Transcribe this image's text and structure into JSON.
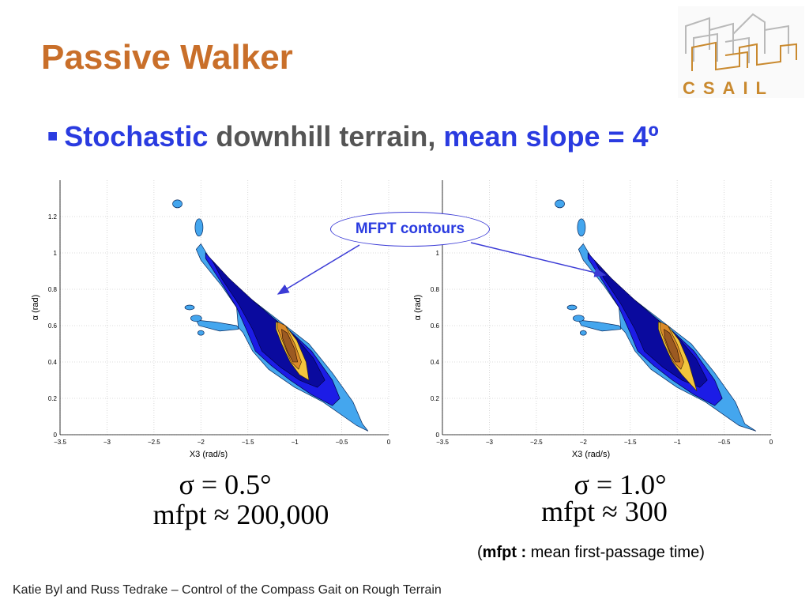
{
  "slide": {
    "title": "Passive Walker",
    "bullet": {
      "part1": "Stochastic",
      "part2": "downhill terrain,",
      "part3": "mean slope = 4º"
    },
    "logo_text": "CSAIL",
    "callout": "MFPT contours",
    "left_caption": {
      "line1": "σ = 0.5°",
      "line2": "mfpt ≈ 200,000"
    },
    "right_caption": {
      "line1": "σ = 1.0°",
      "line2": "mfpt ≈ 300"
    },
    "note": {
      "open": "(",
      "bold": "mfpt :",
      "rest": " mean first-passage time)"
    },
    "footer": "Katie Byl and Russ Tedrake – Control of the Compass Gait on Rough Terrain"
  },
  "colors": {
    "title": "#c96f2a",
    "accent_blue": "#2a3be0",
    "contour_light": "#44a6ee",
    "contour_mid": "#1c1ce6",
    "contour_dark": "#0a0a9e",
    "contour_gold": "#f3c53d",
    "contour_orange": "#d98a2a",
    "contour_brown": "#9b5a22"
  },
  "chart_data": [
    {
      "type": "contour",
      "xlabel": "X3 (rad/s)",
      "ylabel": "α (rad)",
      "xlim": [
        -3.5,
        0
      ],
      "ylim": [
        0,
        1.4
      ],
      "xticks": [
        "−3.5",
        "−3",
        "−2.5",
        "−2",
        "−1.5",
        "−1",
        "−0.5",
        "0"
      ],
      "yticks": [
        "0",
        "0.2",
        "0.4",
        "0.6",
        "0.8",
        "1",
        "1.2"
      ],
      "grid": true
    },
    {
      "type": "contour",
      "xlabel": "X3 (rad/s)",
      "ylabel": "α (rad)",
      "xlim": [
        -3.5,
        0
      ],
      "ylim": [
        0,
        1.4
      ],
      "xticks": [
        "−3.5",
        "−3",
        "−2.5",
        "−2",
        "−1.5",
        "−1",
        "−0.5",
        "0"
      ],
      "yticks": [
        "0",
        "0.2",
        "0.4",
        "0.6",
        "0.8",
        "1",
        "1.2"
      ],
      "grid": true
    }
  ]
}
